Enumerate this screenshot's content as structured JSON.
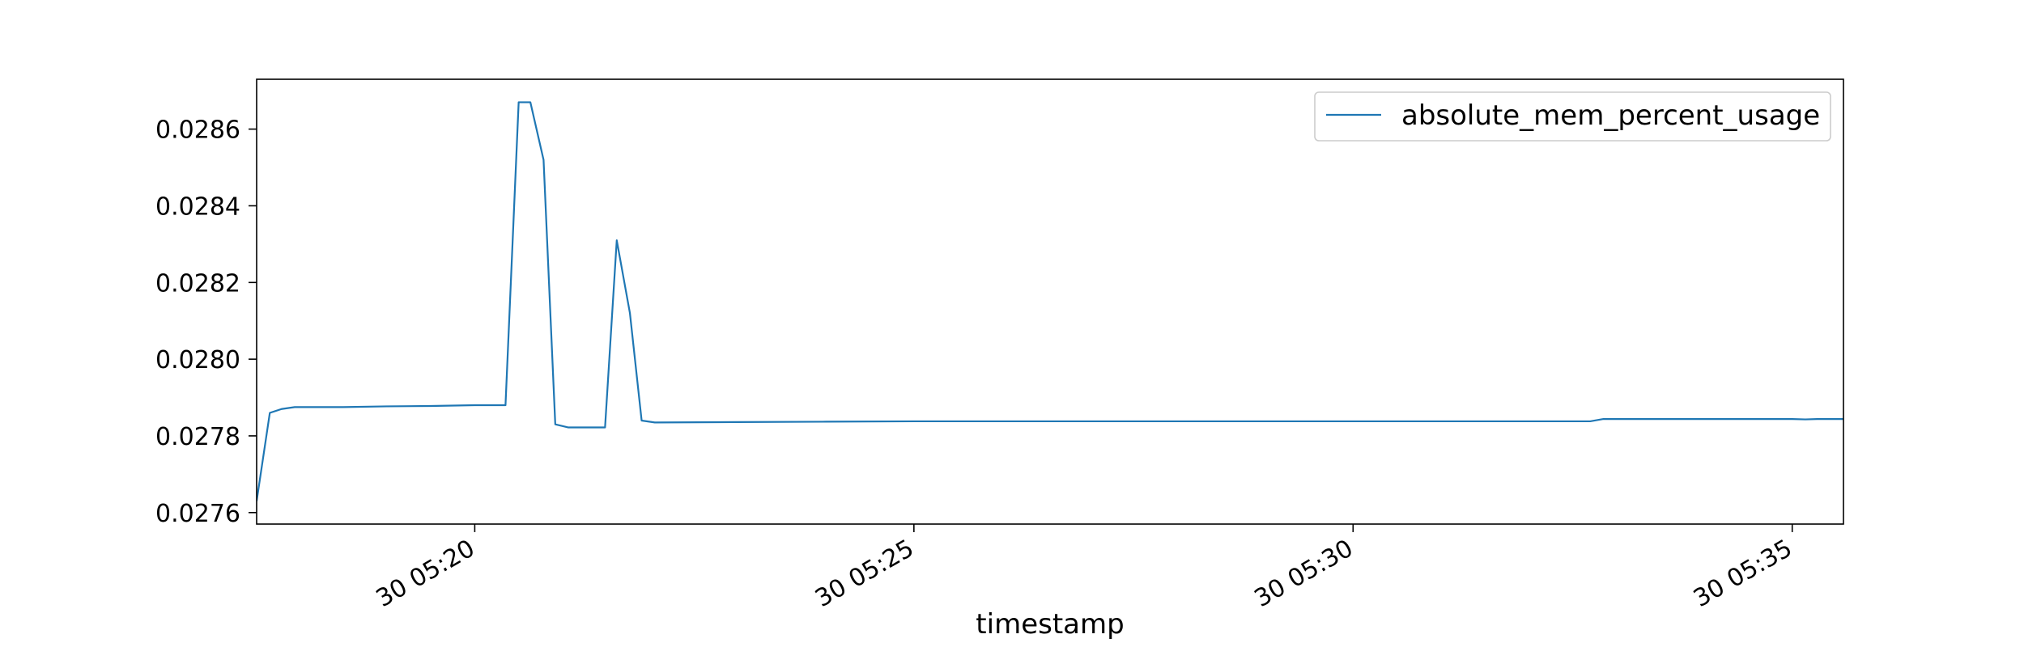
{
  "chart_data": {
    "type": "line",
    "title": "",
    "xlabel": "timestamp",
    "ylabel": "",
    "xlim": [
      "30 05:17:31",
      "30 05:35:35"
    ],
    "ylim": [
      0.02757,
      0.02873
    ],
    "x_ticks": [
      {
        "label": "30 05:20",
        "time": "30 05:20:00"
      },
      {
        "label": "30 05:25",
        "time": "30 05:25:00"
      },
      {
        "label": "30 05:30",
        "time": "30 05:30:00"
      },
      {
        "label": "30 05:35",
        "time": "30 05:35:00"
      }
    ],
    "y_ticks": [
      "0.0276",
      "0.0278",
      "0.0280",
      "0.0282",
      "0.0284",
      "0.0286"
    ],
    "legend_position": "top-right",
    "grid": false,
    "series": [
      {
        "name": "absolute_mem_percent_usage",
        "color": "#1f77b4",
        "points": [
          [
            "30 05:17:31",
            0.02763
          ],
          [
            "30 05:17:40",
            0.02786
          ],
          [
            "30 05:17:48",
            0.02787
          ],
          [
            "30 05:17:57",
            0.027875
          ],
          [
            "30 05:18:30",
            0.027875
          ],
          [
            "30 05:19:00",
            0.027877
          ],
          [
            "30 05:19:30",
            0.027878
          ],
          [
            "30 05:20:00",
            0.02788
          ],
          [
            "30 05:20:21",
            0.02788
          ],
          [
            "30 05:20:30",
            0.02867
          ],
          [
            "30 05:20:38",
            0.02867
          ],
          [
            "30 05:20:47",
            0.02852
          ],
          [
            "30 05:20:55",
            0.02783
          ],
          [
            "30 05:21:04",
            0.027822
          ],
          [
            "30 05:21:20",
            0.027822
          ],
          [
            "30 05:21:29",
            0.027822
          ],
          [
            "30 05:21:37",
            0.02831
          ],
          [
            "30 05:21:46",
            0.02812
          ],
          [
            "30 05:21:54",
            0.02784
          ],
          [
            "30 05:22:03",
            0.027835
          ],
          [
            "30 05:23:00",
            0.027836
          ],
          [
            "30 05:24:00",
            0.027837
          ],
          [
            "30 05:25:00",
            0.027838
          ],
          [
            "30 05:26:00",
            0.027838
          ],
          [
            "30 05:27:00",
            0.027838
          ],
          [
            "30 05:28:00",
            0.027838
          ],
          [
            "30 05:29:00",
            0.027838
          ],
          [
            "30 05:30:00",
            0.027838
          ],
          [
            "30 05:31:00",
            0.027838
          ],
          [
            "30 05:32:00",
            0.027838
          ],
          [
            "30 05:32:42",
            0.027838
          ],
          [
            "30 05:32:51",
            0.027844
          ],
          [
            "30 05:33:30",
            0.027844
          ],
          [
            "30 05:34:00",
            0.027844
          ],
          [
            "30 05:34:30",
            0.027844
          ],
          [
            "30 05:35:00",
            0.027844
          ],
          [
            "30 05:35:09",
            0.027843
          ],
          [
            "30 05:35:17",
            0.027844
          ],
          [
            "30 05:35:35",
            0.027844
          ]
        ]
      }
    ]
  }
}
